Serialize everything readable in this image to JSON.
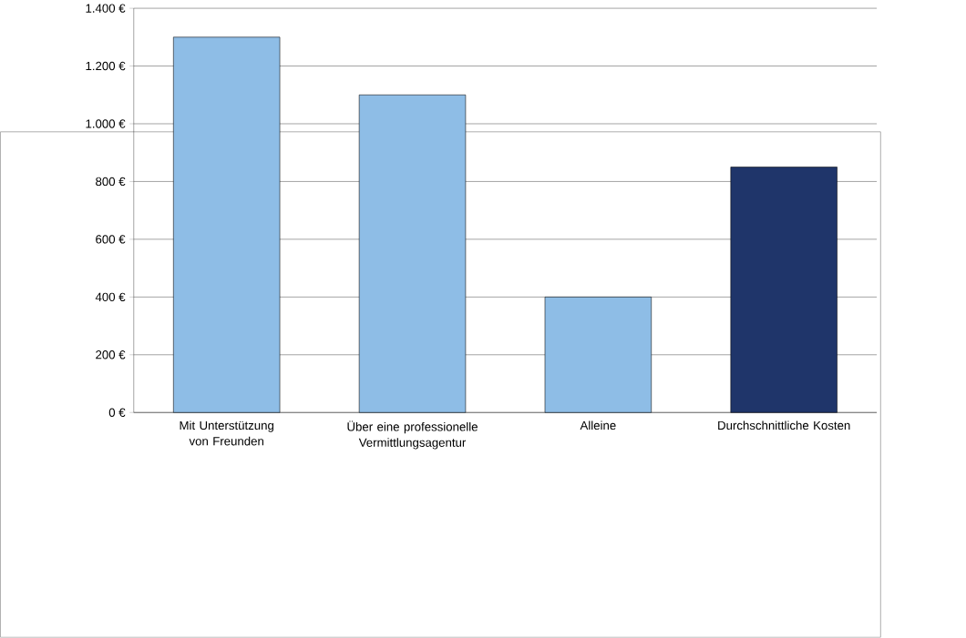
{
  "chart_data": {
    "type": "bar",
    "categories": [
      "Mit Unterstützung von Freunden",
      "Über eine professionelle Vermittlungsagentur",
      "Alleine",
      "Durchschnittliche Kosten"
    ],
    "values": [
      1300,
      1100,
      400,
      850
    ],
    "colors": [
      "#8ebde6",
      "#8ebde6",
      "#8ebde6",
      "#1f356a"
    ],
    "ylim": [
      0,
      1400
    ],
    "yticks": [
      {
        "value": 0,
        "label": "0 €"
      },
      {
        "value": 200,
        "label": "200 €"
      },
      {
        "value": 400,
        "label": "400 €"
      },
      {
        "value": 600,
        "label": "600 €"
      },
      {
        "value": 800,
        "label": "800 €"
      },
      {
        "value": 1000,
        "label": "1.000 €"
      },
      {
        "value": 1200,
        "label": "1.200 €"
      },
      {
        "value": 1400,
        "label": "1.400 €"
      }
    ],
    "grid": "y"
  }
}
